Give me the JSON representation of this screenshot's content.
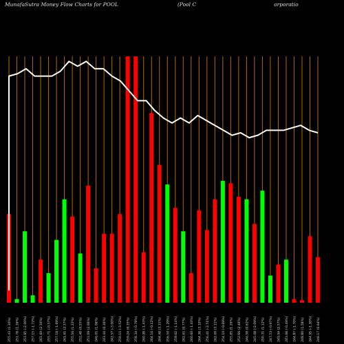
{
  "title_left": "MunafaSutra  Money Flow  Charts for POOL",
  "title_middle": "(Pool C",
  "title_right": "orporatio",
  "chart_data": {
    "type": "bar",
    "title": "MunafaSutra  Money Flow  Charts for POOL  (Pool Corporation)",
    "colors": {
      "up": "#00ff00",
      "down": "#ff0000",
      "line": "#ffffff",
      "grid": "#b86a00"
    },
    "ylim": [
      0,
      100
    ],
    "bars": [
      {
        "label": "255.43 (1.30%)",
        "value": 36,
        "dir": "down"
      },
      {
        "label": "251.78 (1.36%)",
        "value": 1.5,
        "dir": "up"
      },
      {
        "label": "251.85 (-2.00%)",
        "value": 29,
        "dir": "up"
      },
      {
        "label": "257.15 (-1.72%)",
        "value": 3,
        "dir": "up"
      },
      {
        "label": "261.60 (2.30%)",
        "value": 17.5,
        "dir": "down"
      },
      {
        "label": "255.71 (-0.57%)",
        "value": 12,
        "dir": "up"
      },
      {
        "label": "257.18 (-1.69%)",
        "value": 25.5,
        "dir": "up"
      },
      {
        "label": "261.61 (2.37%)",
        "value": 42,
        "dir": "up"
      },
      {
        "label": "255.56 (1.22%)",
        "value": 35,
        "dir": "down"
      },
      {
        "label": "252.48 (0.55%)",
        "value": 20,
        "dir": "up"
      },
      {
        "label": "251.09 (2.06%)",
        "value": 47.5,
        "dir": "down"
      },
      {
        "label": "246.01 (1.06%)",
        "value": 14,
        "dir": "down"
      },
      {
        "label": "243.44 (0.36%)",
        "value": 28,
        "dir": "down"
      },
      {
        "label": "242.57 (-3.00%)",
        "value": 28,
        "dir": "down"
      },
      {
        "label": "250.11 (-3.52%)",
        "value": 36,
        "dir": "down"
      },
      {
        "label": "259.24 (0.35%)",
        "value": 100,
        "dir": "down"
      },
      {
        "label": "258.34 (-0.78%)",
        "value": 100,
        "dir": "down"
      },
      {
        "label": "260.38 (-1.43%)",
        "value": 20.5,
        "dir": "down"
      },
      {
        "label": "264.16 (-0.12%)",
        "value": 77,
        "dir": "down"
      },
      {
        "label": "264.48 (3.11%)",
        "value": 56,
        "dir": "down"
      },
      {
        "label": "256.50 (-1.20%)",
        "value": 48,
        "dir": "up"
      },
      {
        "label": "259.62 (-1.14%)",
        "value": 38.5,
        "dir": "down"
      },
      {
        "label": "262.61 (0.77%)",
        "value": 29,
        "dir": "up"
      },
      {
        "label": "260.60 (-1.43%)",
        "value": 12,
        "dir": "down"
      },
      {
        "label": "264.38 (3.10%)",
        "value": 37.5,
        "dir": "down"
      },
      {
        "label": "256.41 (-2.51%)",
        "value": 29.5,
        "dir": "down"
      },
      {
        "label": "262.00 (3.11%)",
        "value": 42,
        "dir": "down"
      },
      {
        "label": "254.10 (-0.69%)",
        "value": 49.5,
        "dir": "up"
      },
      {
        "label": "255.85 (1.26%)",
        "value": 48.5,
        "dir": "down"
      },
      {
        "label": "252.66 (2.46%)",
        "value": 43,
        "dir": "down"
      },
      {
        "label": "246.58 (0.61%)",
        "value": 42,
        "dir": "up"
      },
      {
        "label": "245.08 (-2.09%)",
        "value": 32,
        "dir": "down"
      },
      {
        "label": "250.31 (1.12%)",
        "value": 45.5,
        "dir": "up"
      },
      {
        "label": "247.53 (-0.97%)",
        "value": 11,
        "dir": "up"
      },
      {
        "label": "249.94 (2.57%)",
        "value": 15.5,
        "dir": "down"
      },
      {
        "label": "243.68 (-0.49%)",
        "value": 17.5,
        "dir": "up"
      },
      {
        "label": "244.87 (-1.70%)",
        "value": 1.5,
        "dir": "down"
      },
      {
        "label": "248.80 (1.58%)",
        "value": 1,
        "dir": "down"
      },
      {
        "label": "244.95 (-1.30%)",
        "value": 27,
        "dir": "down"
      },
      {
        "label": "248.17 (0.64%)",
        "value": 18.5,
        "dir": "down"
      }
    ],
    "line_values": [
      92,
      93,
      95,
      92,
      92,
      92,
      94,
      98,
      96,
      98,
      95,
      95,
      92,
      90,
      86,
      82,
      82,
      78,
      75,
      73,
      75,
      73,
      76,
      74,
      72,
      70,
      68,
      69,
      67,
      68,
      70,
      70,
      70,
      71,
      72,
      70,
      69
    ]
  }
}
